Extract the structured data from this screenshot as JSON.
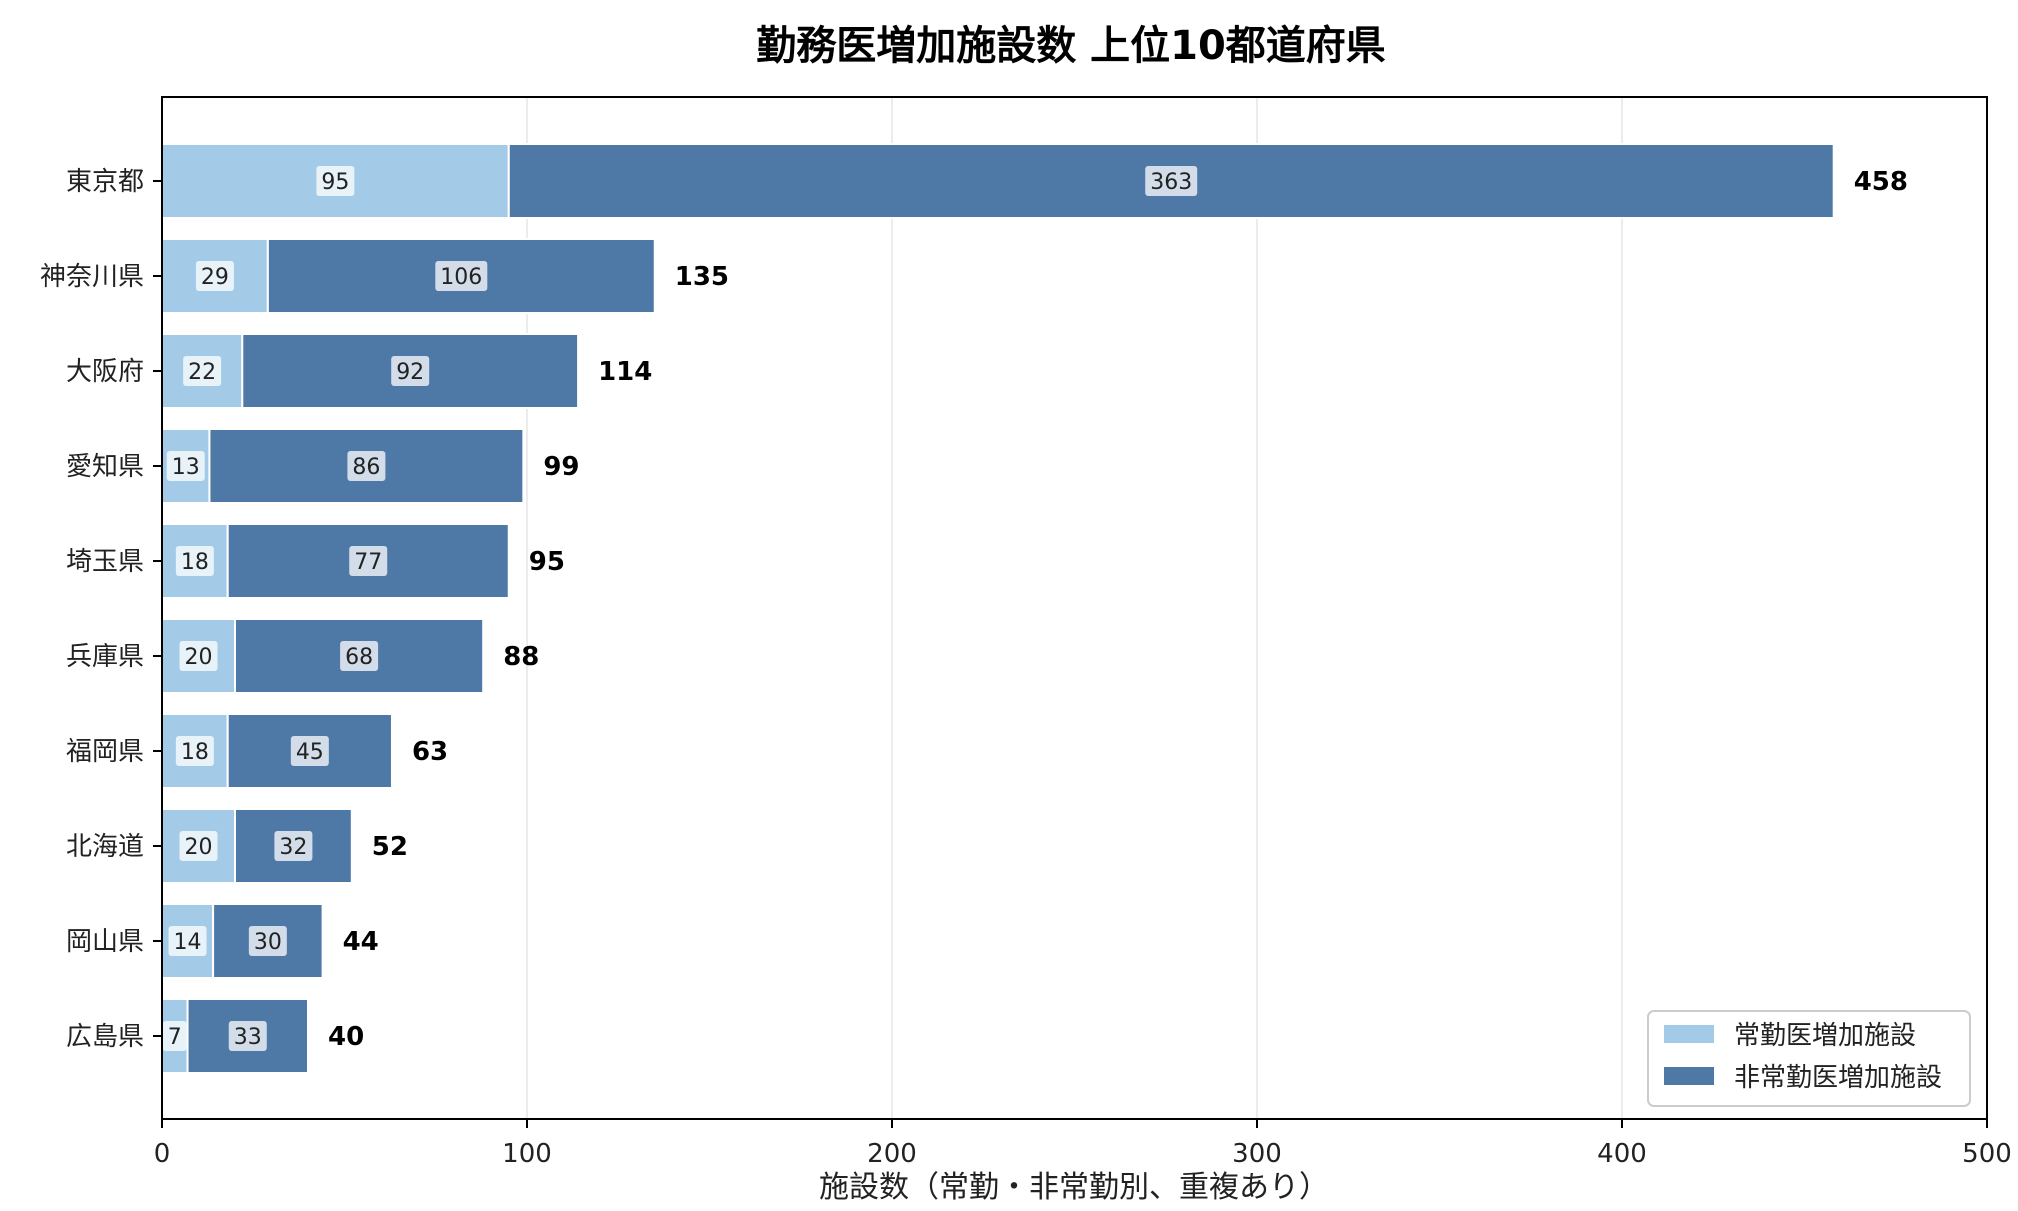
{
  "chart_data": {
    "type": "bar",
    "orientation": "horizontal",
    "stacked": true,
    "title": "勤務医増加施設数 上位10都道府県",
    "xlabel": "施設数（常勤・非常勤別、重複あり）",
    "ylabel": "",
    "xlim": [
      0,
      500
    ],
    "xticks": [
      0,
      100,
      200,
      300,
      400,
      500
    ],
    "grid": "x",
    "legend_position": "bottom-right",
    "categories": [
      "東京都",
      "神奈川県",
      "大阪府",
      "愛知県",
      "埼玉県",
      "兵庫県",
      "福岡県",
      "北海道",
      "岡山県",
      "広島県"
    ],
    "series": [
      {
        "name": "常勤医増加施設",
        "color": "#a3cbe8",
        "values": [
          95,
          29,
          22,
          13,
          18,
          20,
          18,
          20,
          14,
          7
        ]
      },
      {
        "name": "非常勤医増加施設",
        "color": "#4e78a6",
        "values": [
          363,
          106,
          92,
          86,
          77,
          68,
          45,
          32,
          30,
          33
        ]
      }
    ],
    "totals": [
      458,
      135,
      114,
      99,
      95,
      88,
      63,
      52,
      44,
      40
    ]
  }
}
